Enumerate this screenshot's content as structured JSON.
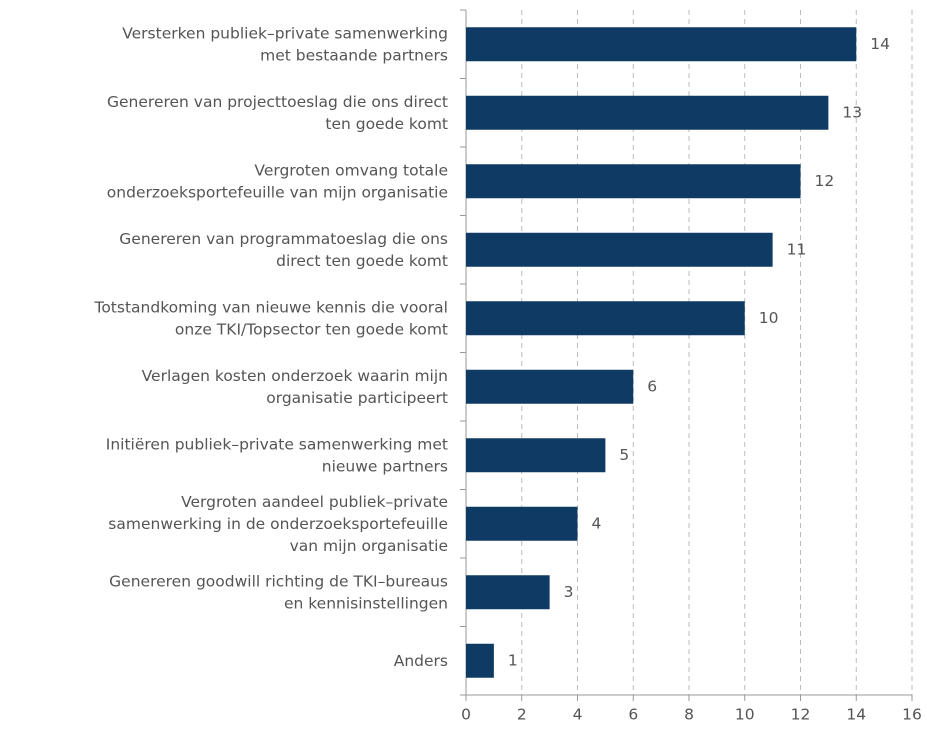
{
  "chart_data": {
    "type": "barh",
    "categories": [
      [
        "Versterken publiek–private samenwerking",
        "met bestaande partners"
      ],
      [
        "Genereren van projecttoeslag die ons direct",
        "ten goede komt"
      ],
      [
        "Vergroten omvang totale",
        "onderzoeksportefeuille van mijn organisatie"
      ],
      [
        "Genereren van programmatoeslag die ons",
        "direct ten goede komt"
      ],
      [
        "Totstandkoming van nieuwe kennis die vooral",
        "onze TKI/Topsector ten goede komt"
      ],
      [
        "Verlagen kosten onderzoek waarin mijn",
        "organisatie participeert"
      ],
      [
        "Initiëren publiek–private samenwerking met",
        "nieuwe partners"
      ],
      [
        "Vergroten aandeel publiek–private",
        "samenwerking in de onderzoeksportefeuille",
        "van mijn organisatie"
      ],
      [
        "Genereren goodwill richting de TKI–bureaus",
        "en kennisinstellingen"
      ],
      [
        "Anders"
      ]
    ],
    "values": [
      14,
      13,
      12,
      11,
      10,
      6,
      5,
      4,
      3,
      1
    ],
    "color": "#0f3a63",
    "xlim": [
      0,
      16
    ],
    "xticks": [
      0,
      2,
      4,
      6,
      8,
      10,
      12,
      14,
      16
    ],
    "grid": true
  }
}
